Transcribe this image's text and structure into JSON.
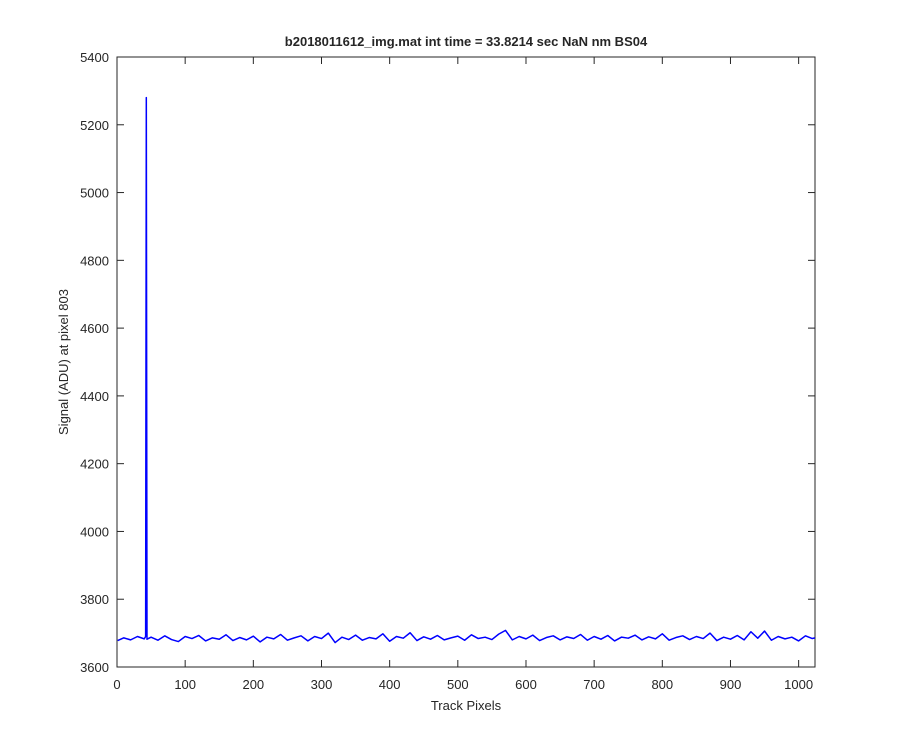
{
  "chart_data": {
    "type": "line",
    "title": "b2018011612_img.mat int time = 33.8214 sec  NaN nm BS04",
    "x_label": "Track Pixels",
    "y_label": "Signal (ADU) at pixel 803",
    "xlim": [
      0,
      1024
    ],
    "ylim": [
      3600,
      5400
    ],
    "xticks": [
      0,
      100,
      200,
      300,
      400,
      500,
      600,
      700,
      800,
      900,
      1000
    ],
    "yticks": [
      3600,
      3800,
      4000,
      4200,
      4400,
      4600,
      4800,
      5000,
      5200,
      5400
    ],
    "grid": false,
    "x": [
      1,
      10,
      20,
      30,
      40,
      42,
      43,
      44,
      50,
      60,
      70,
      80,
      90,
      100,
      110,
      120,
      130,
      140,
      150,
      160,
      170,
      180,
      190,
      200,
      210,
      220,
      230,
      240,
      250,
      260,
      270,
      280,
      290,
      300,
      310,
      320,
      330,
      340,
      350,
      360,
      370,
      380,
      390,
      400,
      410,
      420,
      430,
      440,
      450,
      460,
      470,
      480,
      490,
      500,
      510,
      520,
      530,
      540,
      550,
      560,
      570,
      580,
      590,
      600,
      610,
      620,
      630,
      640,
      650,
      660,
      670,
      680,
      690,
      700,
      710,
      720,
      730,
      740,
      750,
      760,
      770,
      780,
      790,
      800,
      810,
      820,
      830,
      840,
      850,
      860,
      870,
      880,
      890,
      900,
      910,
      920,
      930,
      940,
      950,
      960,
      970,
      980,
      990,
      1000,
      1010,
      1020,
      1024
    ],
    "series": [
      {
        "color": "#0000ff",
        "values": [
          3678,
          3686,
          3680,
          3690,
          3683,
          3690,
          5280,
          3682,
          3688,
          3679,
          3692,
          3681,
          3675,
          3690,
          3684,
          3693,
          3677,
          3686,
          3682,
          3695,
          3678,
          3687,
          3680,
          3691,
          3674,
          3688,
          3683,
          3696,
          3679,
          3686,
          3692,
          3677,
          3690,
          3684,
          3700,
          3672,
          3688,
          3681,
          3694,
          3679,
          3687,
          3683,
          3698,
          3676,
          3690,
          3685,
          3701,
          3678,
          3689,
          3682,
          3693,
          3680,
          3686,
          3691,
          3679,
          3695,
          3684,
          3688,
          3681,
          3697,
          3708,
          3680,
          3690,
          3683,
          3694,
          3678,
          3687,
          3692,
          3680,
          3689,
          3684,
          3696,
          3679,
          3690,
          3682,
          3693,
          3677,
          3688,
          3685,
          3694,
          3680,
          3689,
          3683,
          3698,
          3679,
          3687,
          3692,
          3681,
          3690,
          3684,
          3700,
          3678,
          3688,
          3682,
          3693,
          3680,
          3704,
          3685,
          3706,
          3679,
          3690,
          3683,
          3688,
          3677,
          3692,
          3684,
          3686
        ]
      }
    ]
  }
}
